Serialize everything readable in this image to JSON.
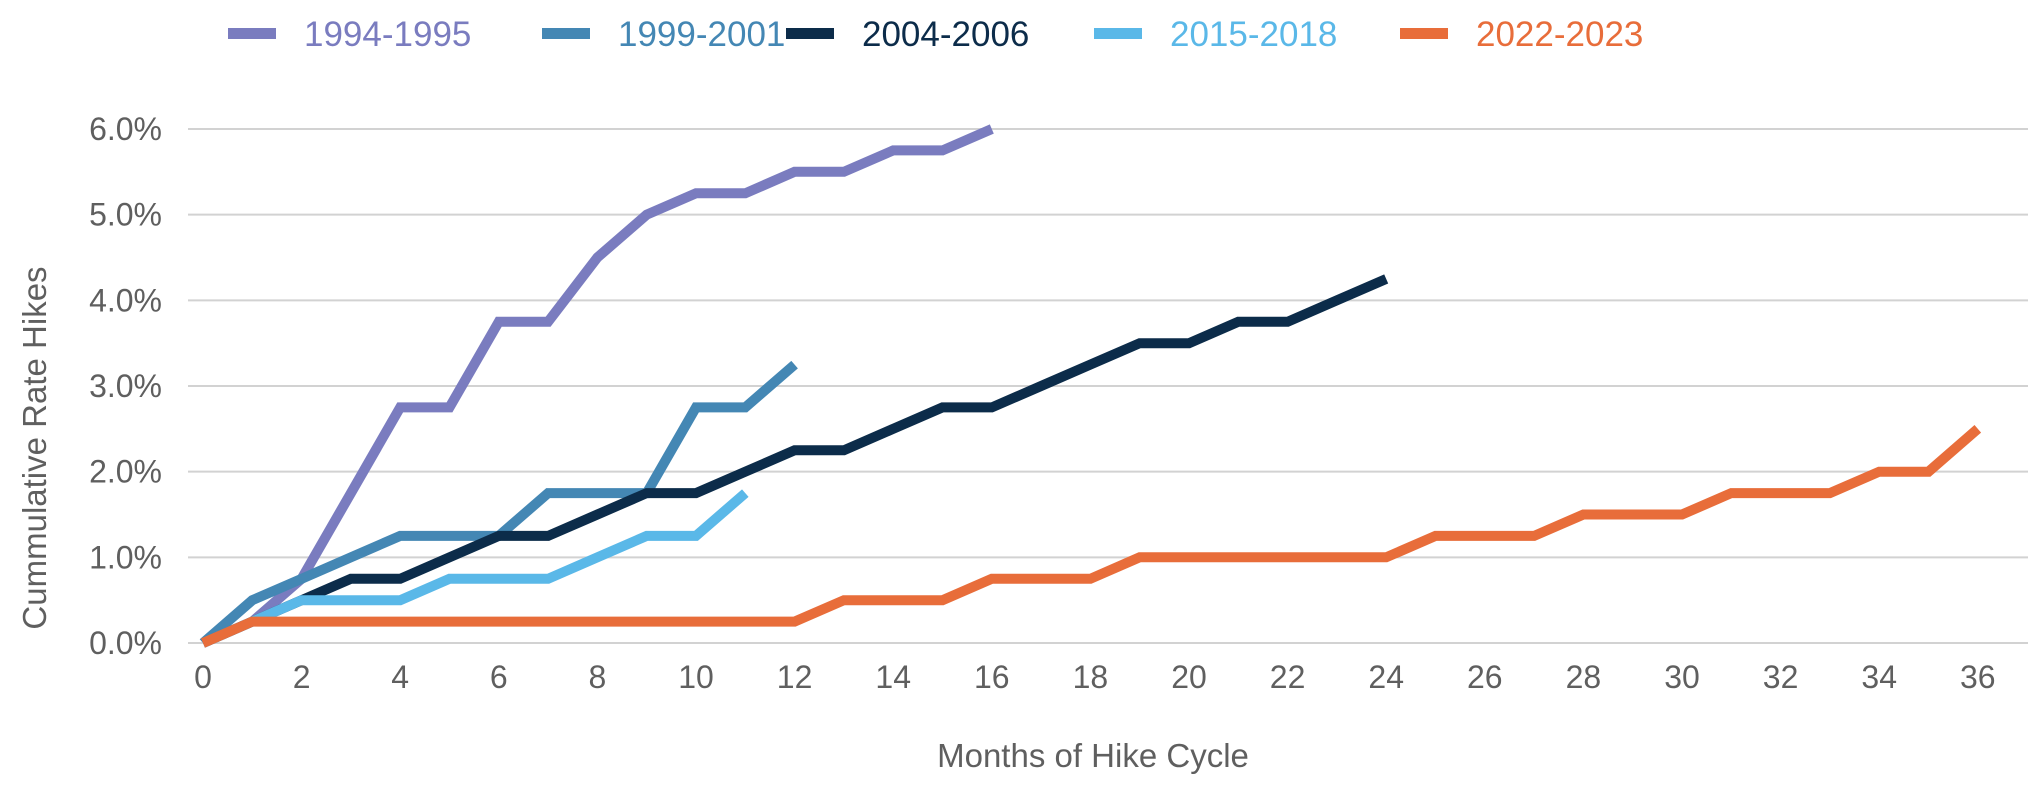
{
  "chart_data": {
    "type": "line",
    "title": "",
    "xlabel": "Months of Hike Cycle",
    "ylabel": "Cummulative Rate Hikes",
    "xlim": [
      0,
      37
    ],
    "ylim": [
      0,
      6
    ],
    "grid": true,
    "legend_position": "top",
    "x_ticks": [
      {
        "value": 0,
        "label": "0"
      },
      {
        "value": 2,
        "label": "2"
      },
      {
        "value": 4,
        "label": "4"
      },
      {
        "value": 6,
        "label": "6"
      },
      {
        "value": 8,
        "label": "8"
      },
      {
        "value": 10,
        "label": "10"
      },
      {
        "value": 12,
        "label": "12"
      },
      {
        "value": 14,
        "label": "14"
      },
      {
        "value": 16,
        "label": "16"
      },
      {
        "value": 18,
        "label": "18"
      },
      {
        "value": 20,
        "label": "20"
      },
      {
        "value": 22,
        "label": "22"
      },
      {
        "value": 24,
        "label": "24"
      },
      {
        "value": 26,
        "label": "26"
      },
      {
        "value": 28,
        "label": "28"
      },
      {
        "value": 30,
        "label": "30"
      },
      {
        "value": 32,
        "label": "32"
      },
      {
        "value": 34,
        "label": "34"
      },
      {
        "value": 36,
        "label": "36"
      }
    ],
    "y_ticks": [
      {
        "value": 0,
        "label": "0.0%"
      },
      {
        "value": 1,
        "label": "1.0%"
      },
      {
        "value": 2,
        "label": "2.0%"
      },
      {
        "value": 3,
        "label": "3.0%"
      },
      {
        "value": 4,
        "label": "4.0%"
      },
      {
        "value": 5,
        "label": "5.0%"
      },
      {
        "value": 6,
        "label": "6.0%"
      }
    ],
    "series": [
      {
        "name": "1994-1995",
        "color": "#7a7cbf",
        "x": [
          0,
          1,
          2,
          3,
          4,
          5,
          6,
          7,
          8,
          9,
          10,
          11,
          12,
          13,
          14,
          15,
          16
        ],
        "y": [
          0,
          0.25,
          0.75,
          1.75,
          2.75,
          2.75,
          3.75,
          3.75,
          4.5,
          5.0,
          5.25,
          5.25,
          5.5,
          5.5,
          5.75,
          5.75,
          6.0
        ]
      },
      {
        "name": "1999-2001",
        "color": "#4487b4",
        "x": [
          0,
          1,
          2,
          3,
          4,
          5,
          6,
          7,
          8,
          9,
          10,
          11,
          12
        ],
        "y": [
          0,
          0.5,
          0.75,
          1.0,
          1.25,
          1.25,
          1.25,
          1.75,
          1.75,
          1.75,
          2.75,
          2.75,
          3.25
        ]
      },
      {
        "name": "2004-2006",
        "color": "#0c2c4a",
        "x": [
          0,
          1,
          2,
          3,
          4,
          5,
          6,
          7,
          8,
          9,
          10,
          11,
          12,
          13,
          14,
          15,
          16,
          17,
          18,
          19,
          20,
          21,
          22,
          23,
          24
        ],
        "y": [
          0,
          0.25,
          0.5,
          0.75,
          0.75,
          1.0,
          1.25,
          1.25,
          1.5,
          1.75,
          1.75,
          2.0,
          2.25,
          2.25,
          2.5,
          2.75,
          2.75,
          3.0,
          3.25,
          3.5,
          3.5,
          3.75,
          3.75,
          4.0,
          4.25
        ]
      },
      {
        "name": "2015-2018",
        "color": "#5ab8e8",
        "x": [
          0,
          1,
          2,
          3,
          4,
          5,
          6,
          7,
          8,
          9,
          10,
          11
        ],
        "y": [
          0,
          0.25,
          0.5,
          0.5,
          0.5,
          0.75,
          0.75,
          0.75,
          1.0,
          1.25,
          1.25,
          1.75
        ]
      },
      {
        "name": "2022-2023",
        "color": "#e86d3a",
        "x": [
          0,
          1,
          2,
          3,
          4,
          5,
          6,
          7,
          8,
          9,
          10,
          11,
          12,
          13,
          14,
          15,
          16,
          17,
          18,
          19,
          20,
          21,
          22,
          23,
          24,
          25,
          26,
          27,
          28,
          29,
          30,
          31,
          32,
          33,
          34,
          35,
          36
        ],
        "y": [
          0,
          0.25,
          0.25,
          0.25,
          0.25,
          0.25,
          0.25,
          0.25,
          0.25,
          0.25,
          0.25,
          0.25,
          0.25,
          0.5,
          0.5,
          0.5,
          0.75,
          0.75,
          0.75,
          1.0,
          1.0,
          1.0,
          1.0,
          1.0,
          1.0,
          1.25,
          1.25,
          1.25,
          1.5,
          1.5,
          1.5,
          1.75,
          1.75,
          1.75,
          2.0,
          2.0,
          2.5
        ]
      }
    ]
  }
}
